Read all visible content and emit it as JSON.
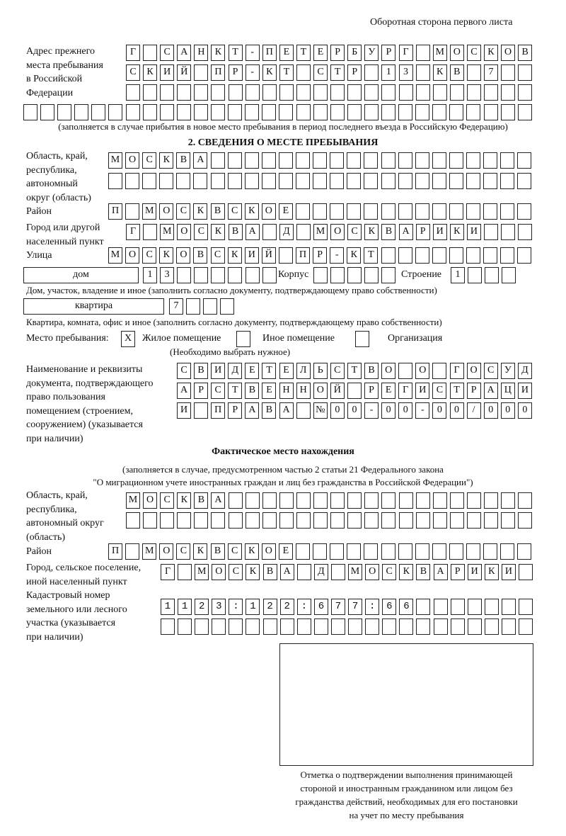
{
  "header": "Оборотная сторона первого листа",
  "prev_address": {
    "label": [
      "Адрес прежнего",
      "места пребывания",
      "в Российской",
      "Федерации"
    ],
    "rows": [
      "Г САНКТ-ПЕТЕРБУРГ МОСКОВ",
      "СКИЙ ПР-КТ СТР 13 КВ 7",
      "",
      ""
    ],
    "note": "(заполняется в случае прибытия в новое место пребывания в период последнего въезда в Российскую Федерацию)"
  },
  "section2": {
    "title": "2. СВЕДЕНИЯ О МЕСТЕ ПРЕБЫВАНИЯ",
    "region": {
      "label": [
        "Область, край,",
        "республика,",
        "автономный",
        "округ (область)"
      ],
      "rows": [
        "МОСКВА",
        ""
      ]
    },
    "district": {
      "label": "Район",
      "value": "П МОСКВСКОЕ"
    },
    "city": {
      "label": [
        "Город или другой",
        "населенный пункт"
      ],
      "value": "Г МОСКВА Д МОСКВАРИКИ"
    },
    "street": {
      "label": "Улица",
      "value": "МОСКОВСКИЙ ПР-КТ"
    },
    "house": {
      "type": "дом",
      "value": "13",
      "korpus_label": "Корпус",
      "korpus": "",
      "stroenie_label": "Строение",
      "stroenie": "1",
      "note": "Дом, участок, владение и иное (заполнить согласно документу, подтверждающему право собственности)"
    },
    "apartment": {
      "type": "квартира",
      "value": "7",
      "note": "Квартира, комната, офис и иное (заполнить согласно документу, подтверждающему право собственности)"
    },
    "place": {
      "label": "Место пребывания:",
      "options": [
        {
          "label": "Жилое помещение",
          "mark": "X"
        },
        {
          "label": "Иное помещение",
          "mark": ""
        },
        {
          "label": "Организация",
          "mark": ""
        }
      ],
      "note": "(Необходимо выбрать нужное)"
    },
    "document": {
      "label": [
        "Наименование и реквизиты",
        "документа, подтверждающего",
        "право пользования",
        "помещением (строением,",
        "сооружением) (указывается",
        "при наличии)"
      ],
      "rows": [
        "СВИДЕТЕЛЬСТВО О ГОСУД",
        "АРСТВЕННОЙ РЕГИСТРАЦИ",
        "И ПРАВА №00-00-00/000"
      ]
    }
  },
  "actual": {
    "title": "Фактическое место нахождения",
    "note": [
      "(заполняется в случае, предусмотренном частью 2 статьи 21 Федерального закона",
      "\"О миграционном учете иностранных граждан и лиц без гражданства в Российской Федерации\")"
    ],
    "region": {
      "label": [
        "Область, край,",
        "республика,",
        "автономный округ",
        "(область)"
      ],
      "rows": [
        "МОСКВА",
        ""
      ]
    },
    "district": {
      "label": "Район",
      "value": "П МОСКВСКОЕ"
    },
    "city": {
      "label": [
        "Город, сельское поселение,",
        "иной населенный пункт"
      ],
      "value": "Г МОСКВА Д МОСКВАРИКИ"
    },
    "cadastral": {
      "label": [
        "Кадастровый номер",
        "земельного или лесного",
        "участка (указывается",
        "при наличии)"
      ],
      "rows": [
        "1123:122:677:66",
        ""
      ]
    }
  },
  "confirmation": {
    "caption": [
      "Отметка о подтверждении выполнения принимающей",
      "стороной и иностранным гражданином или лицом без",
      "гражданства действий, необходимых для его постановки",
      "на учет по месту пребывания"
    ]
  }
}
